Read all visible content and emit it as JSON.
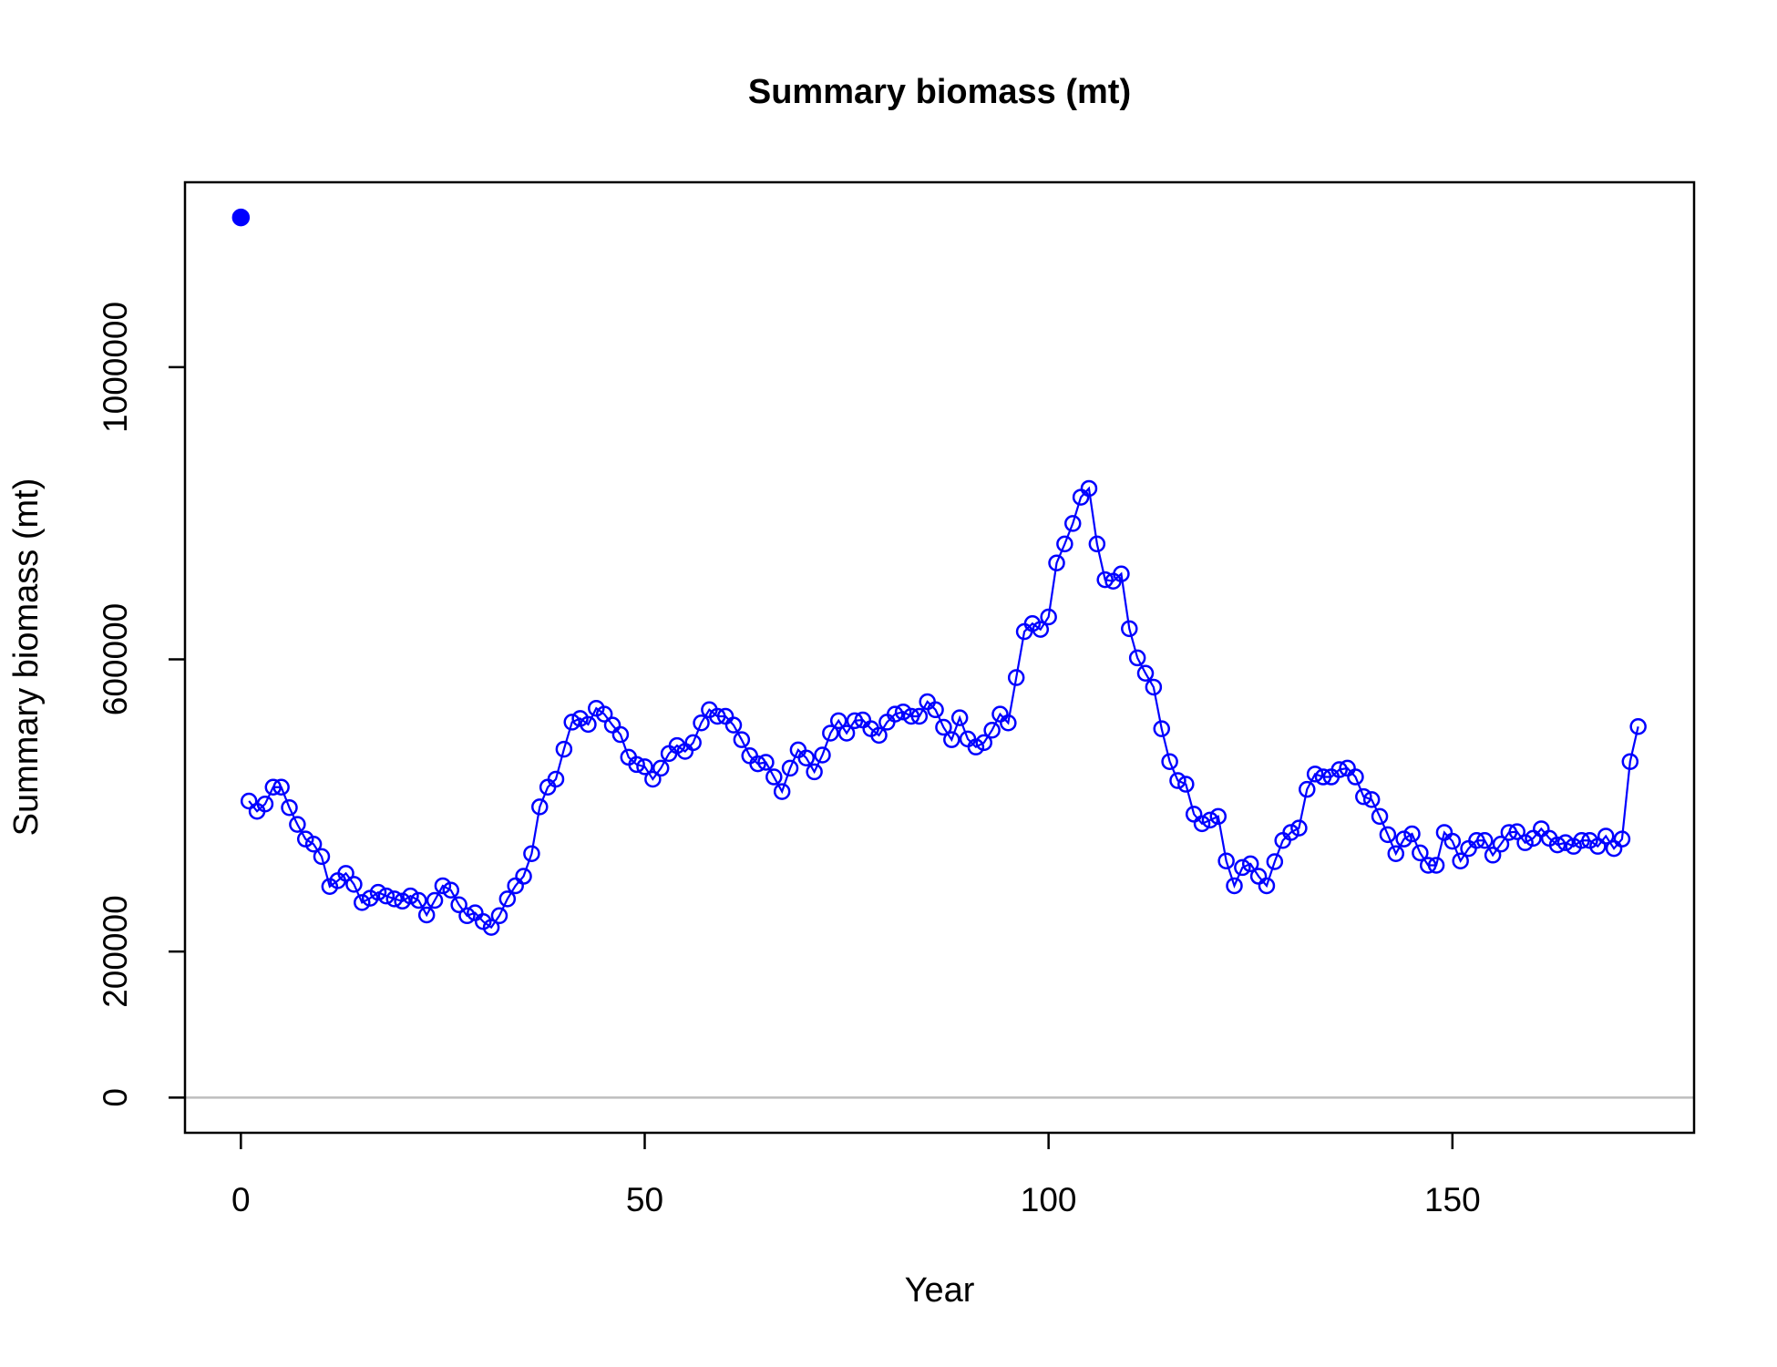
{
  "chart_data": {
    "type": "line",
    "title": "Summary biomass (mt)",
    "x_label": "Year",
    "y_label": "Summary biomass (mt)",
    "xlim": [
      -6.92,
      179.92
    ],
    "ylim": [
      -48200,
      1253200
    ],
    "xticks": [
      0,
      50,
      100,
      150
    ],
    "yticks": [
      0,
      200000,
      600000,
      1000000
    ],
    "hline": 0,
    "series": [
      {
        "color": "#0000ff",
        "line": false,
        "marker": "filled",
        "x": [
          0
        ],
        "values": [
          1205000
        ]
      },
      {
        "color": "#0000ff",
        "line": true,
        "marker": "open",
        "x": [
          1,
          2,
          3,
          4,
          5,
          6,
          7,
          8,
          9,
          10,
          11,
          12,
          13,
          14,
          15,
          16,
          17,
          18,
          19,
          20,
          21,
          22,
          23,
          24,
          25,
          26,
          27,
          28,
          29,
          30,
          31,
          32,
          33,
          34,
          35,
          36,
          37,
          38,
          39,
          40,
          41,
          42,
          43,
          44,
          45,
          46,
          47,
          48,
          49,
          50,
          51,
          52,
          53,
          54,
          55,
          56,
          57,
          58,
          59,
          60,
          61,
          62,
          63,
          64,
          65,
          66,
          67,
          68,
          69,
          70,
          71,
          72,
          73,
          74,
          75,
          76,
          77,
          78,
          79,
          80,
          81,
          82,
          83,
          84,
          85,
          86,
          87,
          88,
          89,
          90,
          91,
          92,
          93,
          94,
          95,
          96,
          97,
          98,
          99,
          100,
          101,
          102,
          103,
          104,
          105,
          106,
          107,
          108,
          109,
          110,
          111,
          112,
          113,
          114,
          115,
          116,
          117,
          118,
          119,
          120,
          121,
          122,
          123,
          124,
          125,
          126,
          127,
          128,
          129,
          130,
          131,
          132,
          133,
          134,
          135,
          136,
          137,
          138,
          139,
          140,
          141,
          142,
          143,
          144,
          145,
          146,
          147,
          148,
          149,
          150,
          151,
          152,
          153,
          154,
          155,
          156,
          157,
          158,
          159,
          160,
          161,
          162,
          163,
          164,
          165,
          166,
          167,
          168,
          169,
          170,
          171,
          172,
          173
        ],
        "values": [
          406000,
          392000,
          402000,
          425000,
          425000,
          397000,
          374000,
          354000,
          347000,
          330000,
          289000,
          297000,
          307000,
          292000,
          267000,
          273000,
          281000,
          276000,
          272000,
          269000,
          276000,
          270000,
          250000,
          270000,
          290000,
          284000,
          264000,
          249000,
          253000,
          241000,
          233000,
          249000,
          272000,
          290000,
          303000,
          334000,
          398000,
          425000,
          436000,
          477000,
          514000,
          519000,
          511000,
          533000,
          525000,
          510000,
          497000,
          466000,
          456000,
          453000,
          436000,
          451000,
          471000,
          482000,
          474000,
          486000,
          513000,
          531000,
          522000,
          522000,
          510000,
          490000,
          468000,
          457000,
          459000,
          439000,
          419000,
          451000,
          476000,
          465000,
          446000,
          469000,
          499000,
          516000,
          499000,
          516000,
          517000,
          505000,
          496000,
          514000,
          525000,
          528000,
          522000,
          522000,
          542000,
          531000,
          507000,
          490000,
          520000,
          491000,
          480000,
          486000,
          503000,
          525000,
          513000,
          575000,
          638000,
          649000,
          641000,
          658000,
          732000,
          758000,
          786000,
          822000,
          834000,
          758000,
          709000,
          707000,
          717000,
          642000,
          602000,
          581000,
          562000,
          505000,
          460000,
          434000,
          429000,
          388000,
          375000,
          380000,
          385000,
          324000,
          290000,
          315000,
          320000,
          303000,
          290000,
          323000,
          352000,
          363000,
          369000,
          422000,
          443000,
          439000,
          439000,
          449000,
          451000,
          439000,
          412000,
          408000,
          385000,
          360000,
          334000,
          354000,
          361000,
          335000,
          318000,
          318000,
          363000,
          351000,
          324000,
          341000,
          352000,
          352000,
          332000,
          347000,
          363000,
          364000,
          349000,
          355000,
          368000,
          355000,
          346000,
          349000,
          344000,
          352000,
          352000,
          344000,
          358000,
          341000,
          354000,
          460000,
          508000
        ]
      }
    ]
  }
}
